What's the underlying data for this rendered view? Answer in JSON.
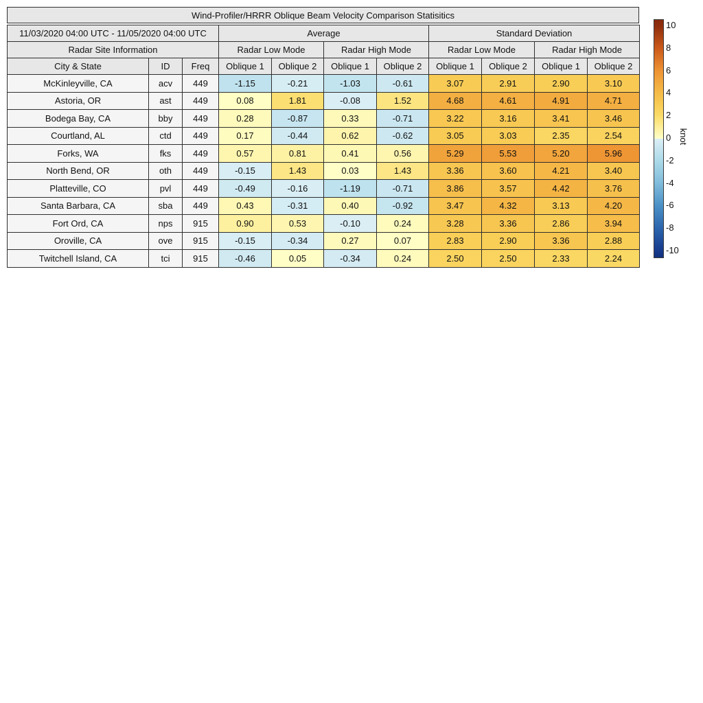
{
  "figure_title": "Wind-Profiler/HRRR Oblique Beam Velocity Comparison Statisitics",
  "header": {
    "date_range": "11/03/2020 04:00 UTC - 11/05/2020 04:00 UTC",
    "group_average": "Average",
    "group_std": "Standard Deviation",
    "site_info": "Radar Site Information",
    "mode_low": "Radar Low Mode",
    "mode_high": "Radar High Mode",
    "col_city": "City & State",
    "col_id": "ID",
    "col_freq": "Freq",
    "col_oblique1": "Oblique 1",
    "col_oblique2": "Oblique 2"
  },
  "colorbar": {
    "label": "knot",
    "ticks": [
      10,
      8,
      6,
      4,
      2,
      0,
      -2,
      -4,
      -6,
      -8,
      -10
    ],
    "vmin": -10,
    "vmax": 10
  },
  "colormap": {
    "positive_stops": [
      [
        0,
        "#FFFFC8"
      ],
      [
        1,
        "#FDEE9A"
      ],
      [
        2,
        "#FBDC69"
      ],
      [
        3,
        "#F8CC55"
      ],
      [
        4,
        "#F6BC49"
      ],
      [
        5,
        "#F2A93E"
      ],
      [
        6,
        "#EE9434"
      ],
      [
        8,
        "#CC5A1B"
      ],
      [
        10,
        "#8F2E0D"
      ]
    ],
    "negative_stops": [
      [
        0,
        "#DCEFF5"
      ],
      [
        -1,
        "#C3E4EF"
      ],
      [
        -2,
        "#ABD9E8"
      ],
      [
        -4,
        "#7FBBDB"
      ],
      [
        -6,
        "#4A90C6"
      ],
      [
        -8,
        "#2C64AD"
      ],
      [
        -10,
        "#16398C"
      ]
    ],
    "over_color": "#872A0C",
    "under_color": "#12327E",
    "header_bg": "#e7e7e7",
    "label_cell_bg": "#f5f5f5",
    "border_color": "#2e2e2e"
  },
  "chart_data": {
    "type": "table",
    "title": "Wind-Profiler/HRRR Oblique Beam Velocity Comparison Statisitics",
    "units": "knot",
    "color_scale_range": [
      -10,
      10
    ],
    "column_groups": [
      "Average",
      "Standard Deviation"
    ],
    "mode_subgroups": [
      "Radar Low Mode",
      "Radar High Mode"
    ],
    "value_columns": [
      "avg_low_oblique1",
      "avg_low_oblique2",
      "avg_high_oblique1",
      "avg_high_oblique2",
      "std_low_oblique1",
      "std_low_oblique2",
      "std_high_oblique1",
      "std_high_oblique2"
    ],
    "rows": [
      {
        "city": "McKinleyville, CA",
        "id": "acv",
        "freq": "449",
        "values": [
          -1.15,
          -0.21,
          -1.03,
          -0.61,
          3.07,
          2.91,
          2.9,
          3.1
        ]
      },
      {
        "city": "Astoria, OR",
        "id": "ast",
        "freq": "449",
        "values": [
          0.08,
          1.81,
          -0.08,
          1.52,
          4.68,
          4.61,
          4.91,
          4.71
        ]
      },
      {
        "city": "Bodega Bay, CA",
        "id": "bby",
        "freq": "449",
        "values": [
          0.28,
          -0.87,
          0.33,
          -0.71,
          3.22,
          3.16,
          3.41,
          3.46
        ]
      },
      {
        "city": "Courtland, AL",
        "id": "ctd",
        "freq": "449",
        "values": [
          0.17,
          -0.44,
          0.62,
          -0.62,
          3.05,
          3.03,
          2.35,
          2.54
        ]
      },
      {
        "city": "Forks, WA",
        "id": "fks",
        "freq": "449",
        "values": [
          0.57,
          0.81,
          0.41,
          0.56,
          5.29,
          5.53,
          5.2,
          5.96
        ]
      },
      {
        "city": "North Bend, OR",
        "id": "oth",
        "freq": "449",
        "values": [
          -0.15,
          1.43,
          0.03,
          1.43,
          3.36,
          3.6,
          4.21,
          3.4
        ]
      },
      {
        "city": "Platteville, CO",
        "id": "pvl",
        "freq": "449",
        "values": [
          -0.49,
          -0.16,
          -1.19,
          -0.71,
          3.86,
          3.57,
          4.42,
          3.76
        ]
      },
      {
        "city": "Santa Barbara, CA",
        "id": "sba",
        "freq": "449",
        "values": [
          0.43,
          -0.31,
          0.4,
          -0.92,
          3.47,
          4.32,
          3.13,
          4.2
        ]
      },
      {
        "city": "Fort Ord, CA",
        "id": "nps",
        "freq": "915",
        "values": [
          0.9,
          0.53,
          -0.1,
          0.24,
          3.28,
          3.36,
          2.86,
          3.94
        ]
      },
      {
        "city": "Oroville, CA",
        "id": "ove",
        "freq": "915",
        "values": [
          -0.15,
          -0.34,
          0.27,
          0.07,
          2.83,
          2.9,
          3.36,
          2.88
        ]
      },
      {
        "city": "Twitchell Island, CA",
        "id": "tci",
        "freq": "915",
        "values": [
          -0.46,
          0.05,
          -0.34,
          0.24,
          2.5,
          2.5,
          2.33,
          2.24
        ]
      }
    ]
  }
}
